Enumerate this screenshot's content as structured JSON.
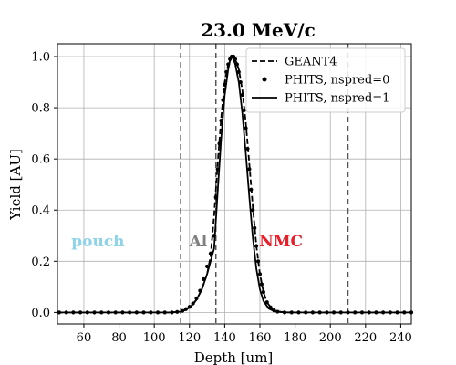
{
  "chart_data": {
    "type": "line",
    "title": "23.0 MeV/c",
    "xlabel": "Depth [um]",
    "ylabel": "Yield [AU]",
    "xlim": [
      45,
      246
    ],
    "ylim": [
      -0.045,
      1.05
    ],
    "xticks": [
      60,
      80,
      100,
      120,
      140,
      160,
      180,
      200,
      220,
      240
    ],
    "yticks": [
      0.0,
      0.2,
      0.4,
      0.6,
      0.8,
      1.0
    ],
    "grid": true,
    "legend_position": "top-right",
    "vlines": [
      115,
      135,
      210
    ],
    "regions": [
      {
        "label": "pouch",
        "x": 68,
        "y": 0.28,
        "color": "#8fd3e8"
      },
      {
        "label": "Al",
        "x": 125,
        "y": 0.28,
        "color": "#808080"
      },
      {
        "label": "NMC",
        "x": 172,
        "y": 0.28,
        "color": "#e8202a"
      }
    ],
    "series": [
      {
        "name": "GEANT4",
        "style": "dashed",
        "x": [
          45,
          100,
          110,
          115,
          118,
          121,
          124,
          127,
          130,
          132,
          134,
          136,
          138,
          140,
          142,
          144,
          145,
          146,
          148,
          150,
          152,
          154,
          156,
          158,
          160,
          162,
          164,
          167,
          170,
          175,
          180,
          200,
          246
        ],
        "y": [
          0.0,
          0.0,
          0.0,
          0.003,
          0.012,
          0.025,
          0.05,
          0.09,
          0.15,
          0.22,
          0.38,
          0.58,
          0.76,
          0.9,
          0.97,
          1.0,
          1.0,
          0.99,
          0.95,
          0.87,
          0.74,
          0.58,
          0.41,
          0.26,
          0.15,
          0.08,
          0.04,
          0.012,
          0.004,
          0.0,
          0.0,
          0.0,
          0.0
        ]
      },
      {
        "name": "PHITS, nspred=0",
        "style": "dots",
        "x": [
          46,
          50,
          54,
          58,
          62,
          66,
          70,
          74,
          78,
          82,
          86,
          90,
          94,
          98,
          102,
          106,
          110,
          113,
          116,
          118,
          120,
          122,
          124,
          126,
          128,
          130,
          132,
          134,
          135,
          136,
          137,
          138,
          139,
          140,
          141,
          142,
          143,
          144,
          145,
          146,
          147,
          148,
          149,
          150,
          151,
          152,
          153,
          154,
          155,
          156,
          157,
          158,
          159,
          160,
          161,
          162,
          164,
          166,
          168,
          170,
          174,
          178,
          182,
          186,
          190,
          194,
          198,
          202,
          206,
          210,
          214,
          218,
          222,
          226,
          230,
          234,
          238,
          242,
          246
        ],
        "y": [
          0.0,
          0.0,
          0.0,
          0.0,
          0.0,
          0.0,
          0.0,
          0.0,
          0.0,
          0.0,
          0.0,
          0.0,
          0.0,
          0.0,
          0.0,
          0.0,
          0.0,
          0.002,
          0.006,
          0.013,
          0.022,
          0.035,
          0.055,
          0.085,
          0.13,
          0.18,
          0.23,
          0.3,
          0.45,
          0.56,
          0.66,
          0.75,
          0.83,
          0.89,
          0.94,
          0.97,
          0.99,
          1.0,
          1.0,
          0.99,
          0.97,
          0.94,
          0.9,
          0.85,
          0.79,
          0.72,
          0.64,
          0.56,
          0.48,
          0.4,
          0.33,
          0.26,
          0.2,
          0.15,
          0.11,
          0.08,
          0.04,
          0.02,
          0.008,
          0.003,
          0.0,
          0.0,
          0.0,
          0.0,
          0.0,
          0.0,
          0.0,
          0.0,
          0.0,
          0.0,
          0.0,
          0.0,
          0.0,
          0.0,
          0.0,
          0.0,
          0.0,
          0.0,
          0.0
        ]
      },
      {
        "name": "PHITS, nspred=1",
        "style": "solid",
        "x": [
          45,
          100,
          110,
          115,
          118,
          121,
          124,
          127,
          130,
          132,
          134,
          136,
          138,
          140,
          142,
          143,
          144,
          145,
          146,
          148,
          150,
          152,
          154,
          156,
          158,
          160,
          162,
          165,
          168,
          172,
          180,
          200,
          246
        ],
        "y": [
          0.0,
          0.0,
          0.0,
          0.003,
          0.01,
          0.025,
          0.05,
          0.09,
          0.15,
          0.2,
          0.25,
          0.47,
          0.68,
          0.85,
          0.95,
          0.985,
          1.0,
          0.99,
          0.97,
          0.9,
          0.78,
          0.62,
          0.45,
          0.29,
          0.17,
          0.09,
          0.045,
          0.015,
          0.005,
          0.001,
          0.0,
          0.0,
          0.0
        ]
      }
    ]
  }
}
